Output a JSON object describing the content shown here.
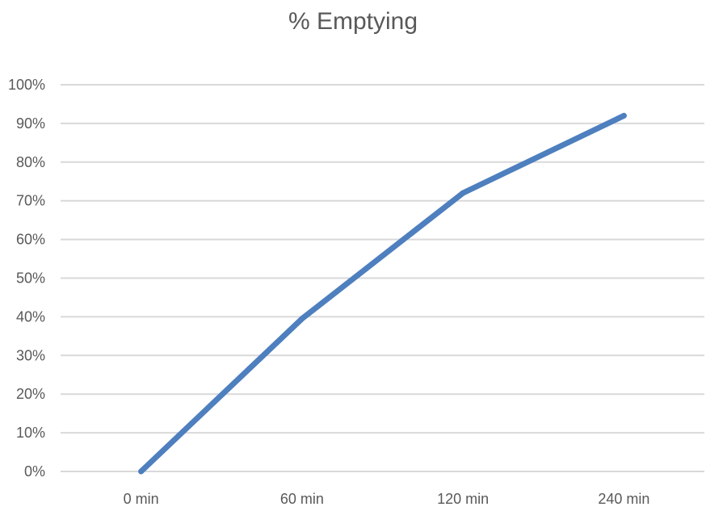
{
  "chart_data": {
    "type": "line",
    "title": "% Emptying",
    "xlabel": "",
    "ylabel": "",
    "categories": [
      "0 min",
      "60 min",
      "120 min",
      "240 min"
    ],
    "series": [
      {
        "values": [
          0,
          39.5,
          72,
          92
        ]
      }
    ],
    "ylim": [
      0,
      100
    ],
    "yticks": [
      0,
      10,
      20,
      30,
      40,
      50,
      60,
      70,
      80,
      90,
      100
    ],
    "ytick_labels": [
      "0%",
      "10%",
      "20%",
      "30%",
      "40%",
      "50%",
      "60%",
      "70%",
      "80%",
      "90%",
      "100%"
    ],
    "grid": true,
    "legend": "none",
    "colors": {
      "series": "#4e7fbe",
      "grid": "#d9d9d9",
      "text": "#595959"
    }
  }
}
